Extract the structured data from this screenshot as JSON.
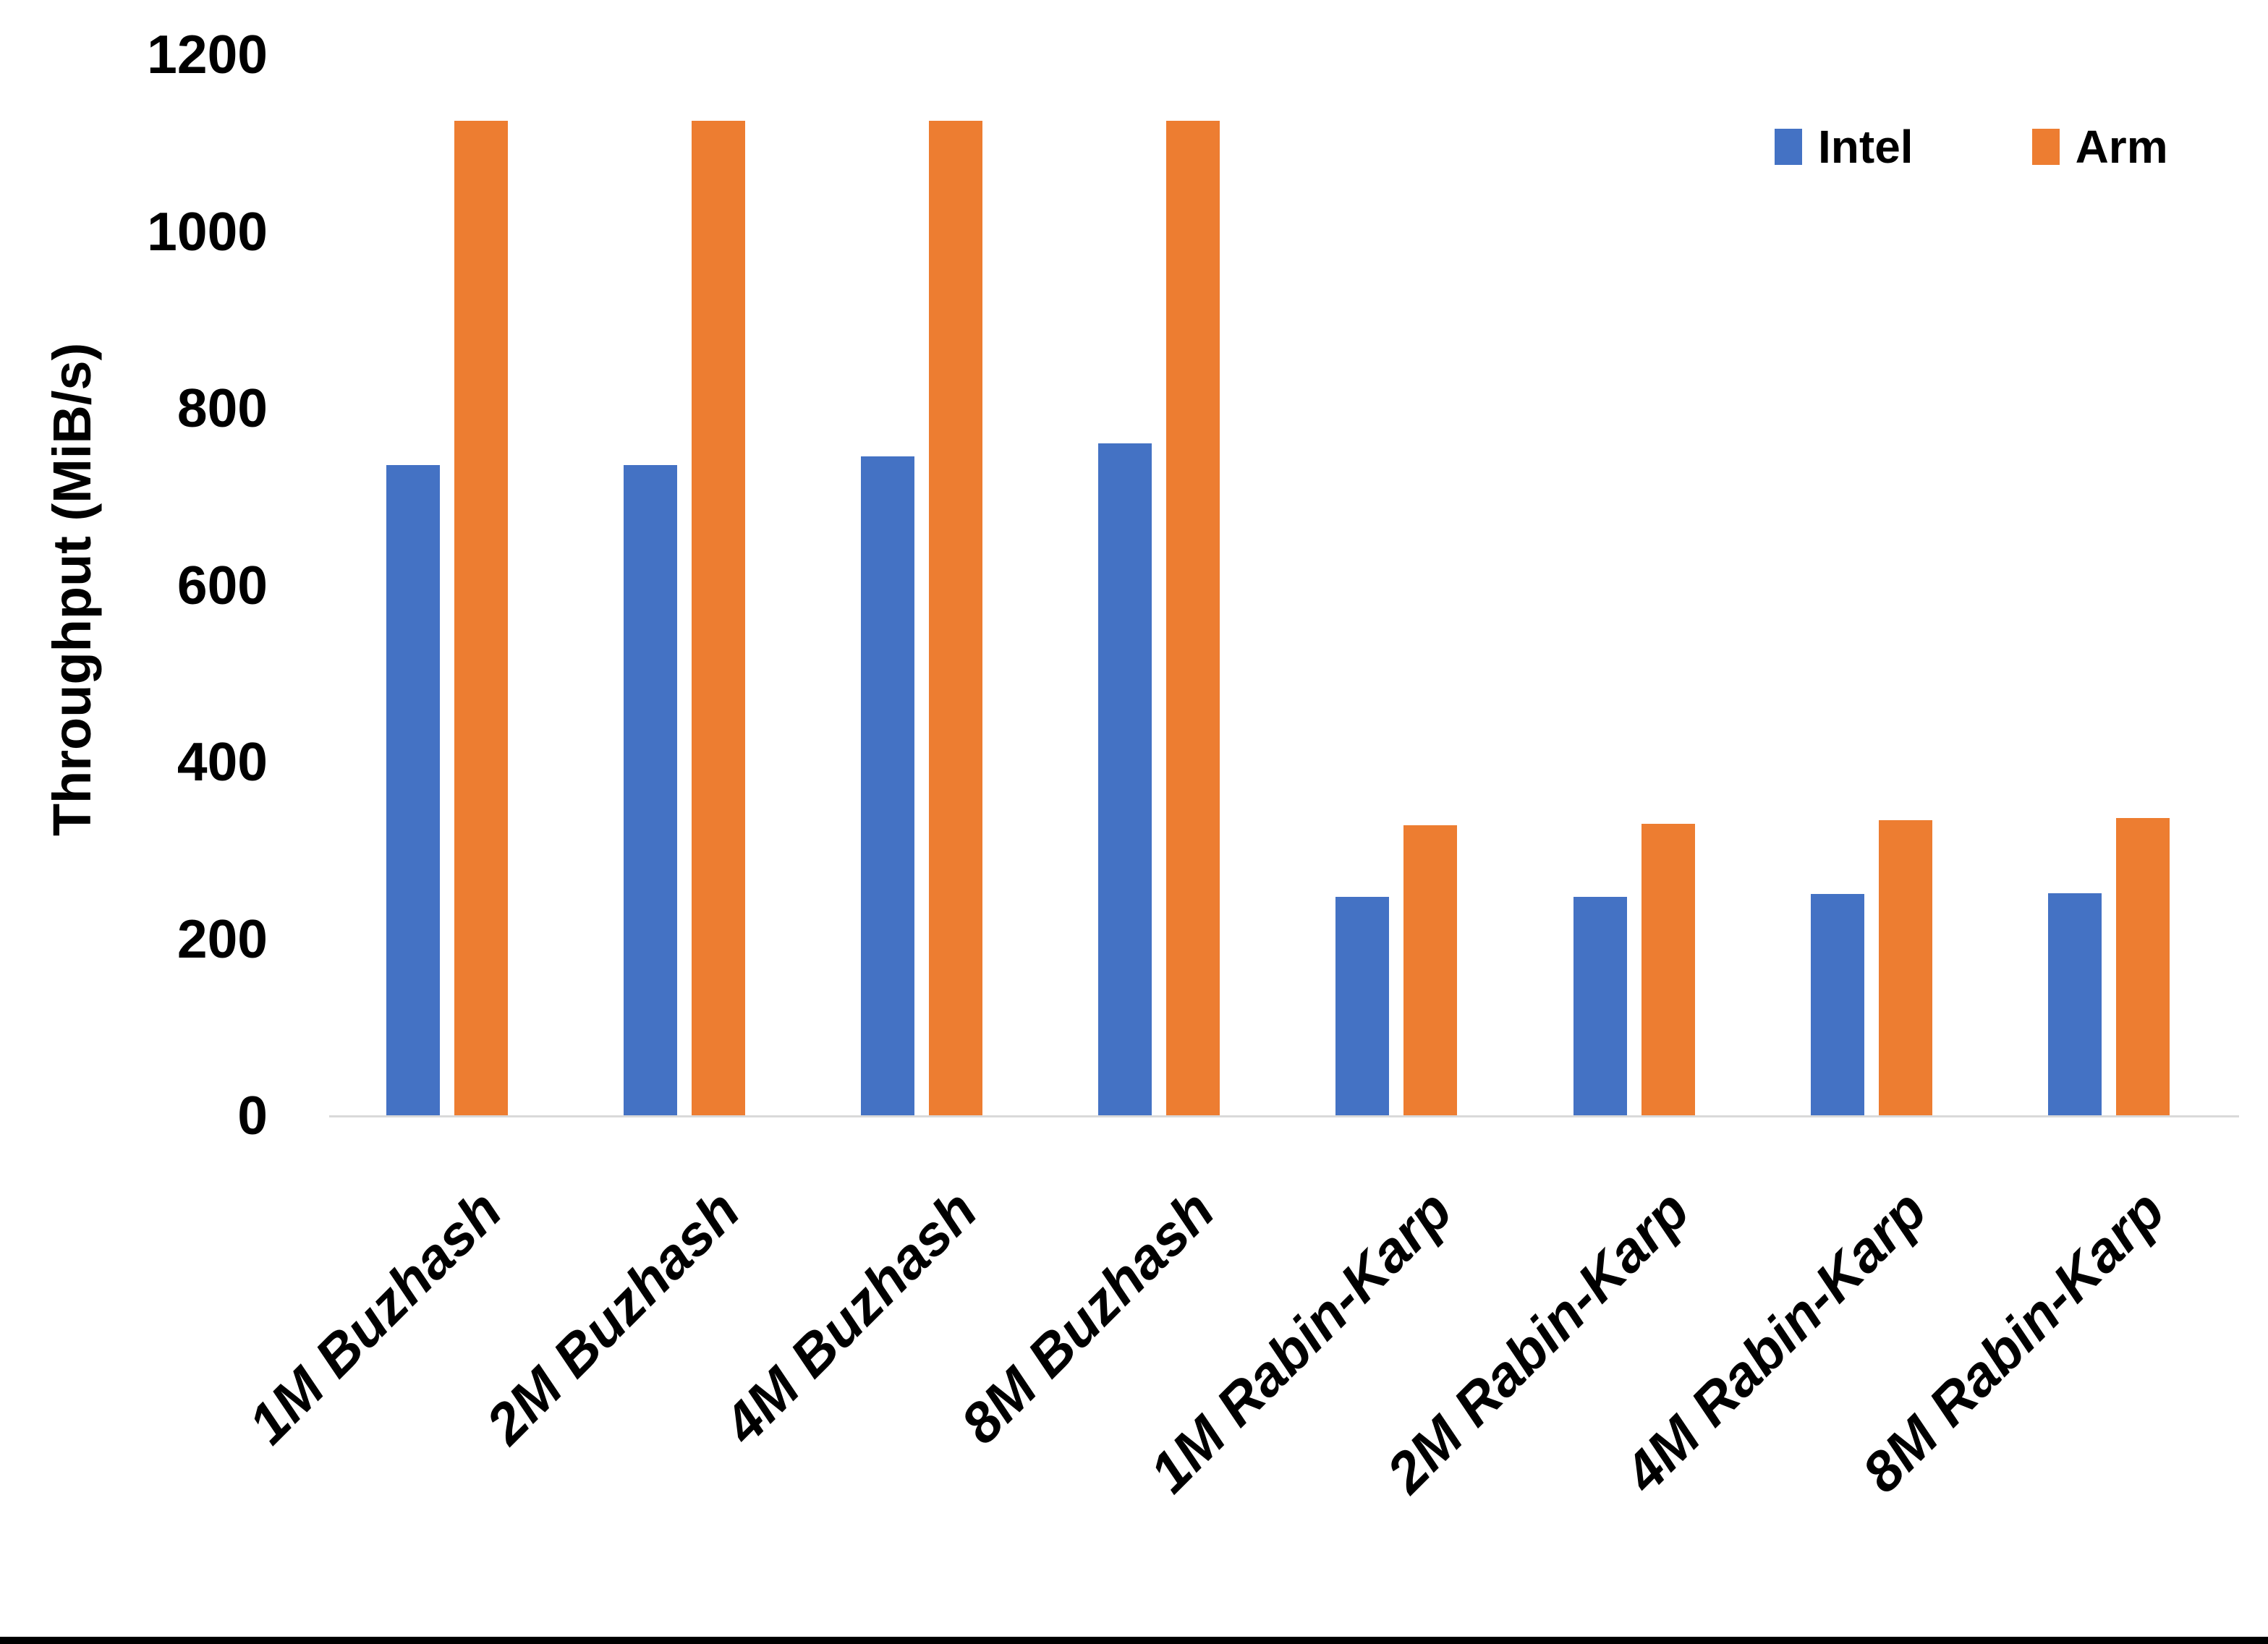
{
  "chart_data": {
    "type": "bar",
    "title": "",
    "ylabel": "Throughput (MiB/s)",
    "xlabel": "",
    "ylim": [
      0,
      1200
    ],
    "yticks": [
      0,
      200,
      400,
      600,
      800,
      1000,
      1200
    ],
    "grid": false,
    "legend_position": "top-right",
    "categories": [
      "1M Buzhash",
      "2M Buzhash",
      "4M Buzhash",
      "8M Buzhash",
      "1M Rabin-Karp",
      "2M Rabin-Karp",
      "4M Rabin-Karp",
      "8M Rabin-Karp"
    ],
    "series": [
      {
        "name": "Intel",
        "color": "#4472C4",
        "values": [
          735,
          735,
          745,
          760,
          247,
          247,
          250,
          251
        ]
      },
      {
        "name": "Arm",
        "color": "#ED7D31",
        "values": [
          1125,
          1125,
          1125,
          1125,
          328,
          330,
          334,
          336
        ]
      }
    ]
  },
  "colors": {
    "axis_line": "#D9D9D9",
    "text": "#000000",
    "background": "#FFFFFF",
    "bottom_border": "#000000"
  }
}
